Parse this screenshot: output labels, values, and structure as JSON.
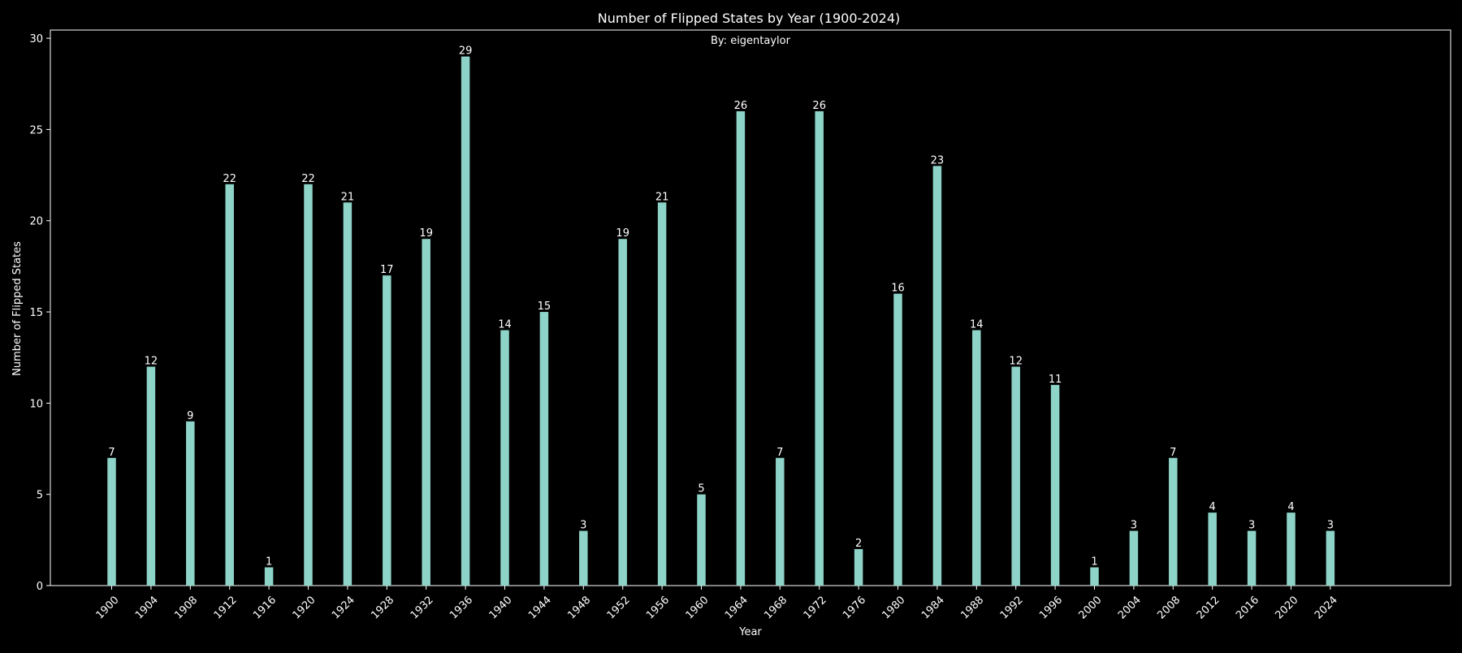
{
  "chart_data": {
    "type": "bar",
    "title": "Number of Flipped States by Year (1900-2024)",
    "subtitle": "By: eigentaylor",
    "xlabel": "Year",
    "ylabel": "Number of Flipped States",
    "categories": [
      "1900",
      "1904",
      "1908",
      "1912",
      "1916",
      "1920",
      "1924",
      "1928",
      "1932",
      "1936",
      "1940",
      "1944",
      "1948",
      "1952",
      "1956",
      "1960",
      "1964",
      "1968",
      "1972",
      "1976",
      "1980",
      "1984",
      "1988",
      "1992",
      "1996",
      "2000",
      "2004",
      "2008",
      "2012",
      "2016",
      "2020",
      "2024"
    ],
    "values": [
      7,
      12,
      9,
      22,
      1,
      22,
      21,
      17,
      19,
      29,
      14,
      15,
      3,
      19,
      21,
      5,
      26,
      7,
      26,
      2,
      16,
      23,
      14,
      12,
      11,
      1,
      3,
      7,
      4,
      3,
      4,
      3
    ],
    "ylim": [
      0,
      30.45
    ],
    "yticks": [
      0,
      5,
      10,
      15,
      20,
      25,
      30
    ],
    "xlim": [
      1893.76,
      2036.24
    ],
    "grid": false,
    "colors": {
      "background": "#000000",
      "bar": "#8dd3c7",
      "text": "#ffffff",
      "axes": "#ffffff"
    }
  }
}
